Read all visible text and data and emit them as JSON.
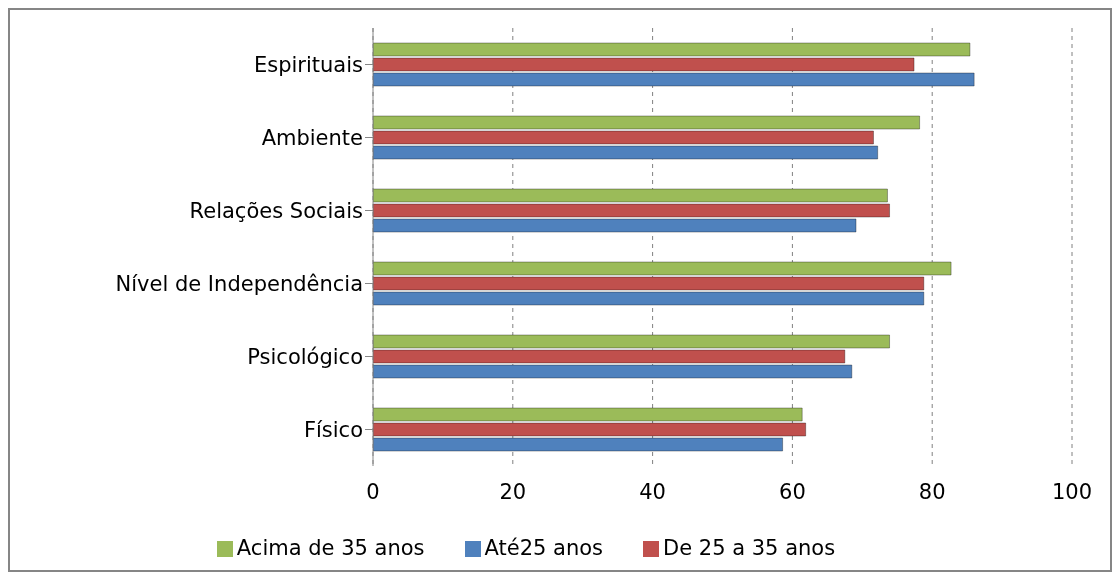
{
  "chart_data": {
    "type": "bar",
    "orientation": "horizontal",
    "categories": [
      "Espirituais",
      "Ambiente",
      "Relações Sociais",
      "Nível de Independência",
      "Psicológico",
      "Físico"
    ],
    "series": [
      {
        "name": "Acima de 35 anos",
        "color": "#9bbb59",
        "values": [
          85.4,
          78.2,
          73.6,
          82.7,
          73.9,
          61.4
        ]
      },
      {
        "name": "De 25 a 35 anos",
        "color": "#c0504d",
        "values": [
          77.4,
          71.6,
          73.9,
          78.8,
          67.5,
          61.9
        ]
      },
      {
        "name": "Até25 anos",
        "color": "#4f81bd",
        "values": [
          86.0,
          72.2,
          69.1,
          78.8,
          68.5,
          58.6
        ]
      }
    ],
    "xlim": [
      0,
      100
    ],
    "xticks": [
      0,
      20,
      40,
      60,
      80,
      100
    ],
    "grid": "x",
    "legend": "bottom"
  }
}
